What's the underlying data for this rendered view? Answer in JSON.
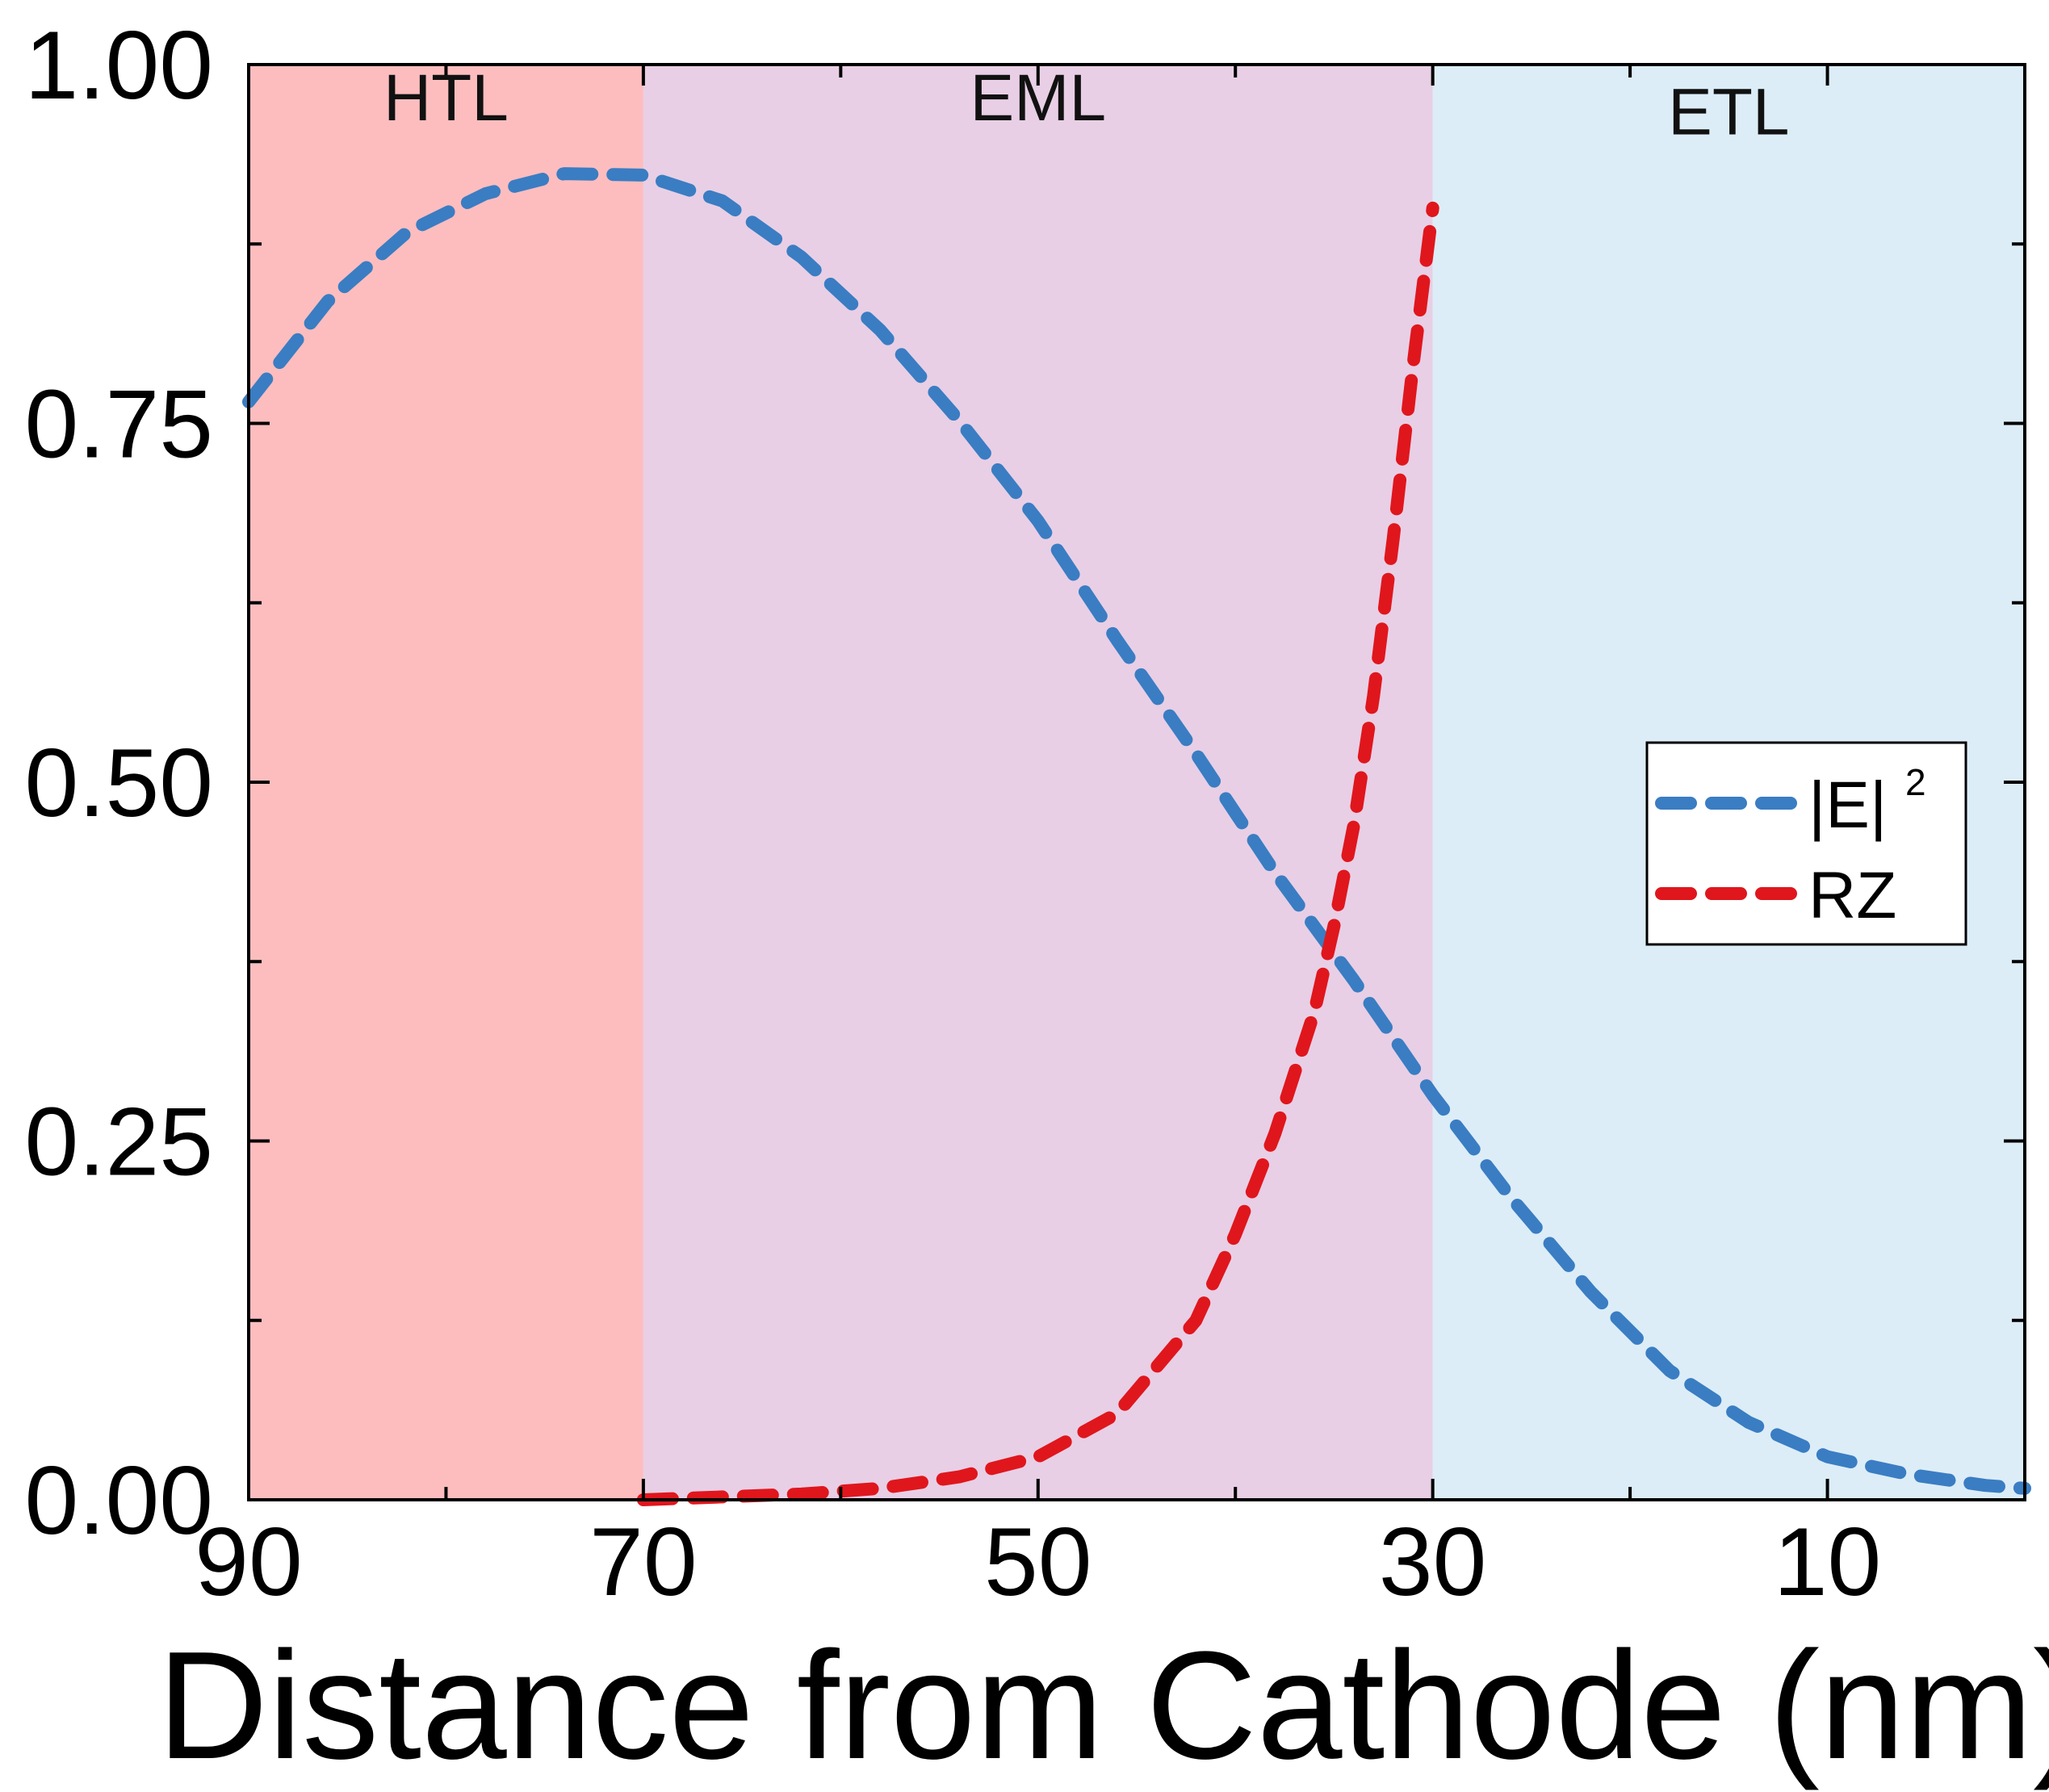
{
  "chart_data": {
    "type": "line",
    "xlabel": "Distance from Cathode (nm)",
    "ylabel": "",
    "xlim": [
      90,
      0
    ],
    "ylim": [
      0,
      1
    ],
    "x_reversed": true,
    "x_ticks": [
      90,
      70,
      50,
      30,
      10
    ],
    "x_tick_labels": [
      "90",
      "70",
      "50",
      "30",
      "10"
    ],
    "x_minor_ticks": [
      80,
      60,
      40,
      20
    ],
    "y_ticks": [
      0,
      0.25,
      0.5,
      0.75,
      1.0
    ],
    "y_tick_labels": [
      "0.00",
      "0.25",
      "0.50",
      "0.75",
      "1.00"
    ],
    "y_minor_ticks": [
      0.125,
      0.375,
      0.625,
      0.875
    ],
    "grid": false,
    "legend_position": "right",
    "regions": [
      {
        "label": "HTL",
        "x_start": 90,
        "x_end": 70,
        "color": "#fdbdbe"
      },
      {
        "label": "EML",
        "x_start": 70,
        "x_end": 30,
        "color": "#e8cfe5"
      },
      {
        "label": "ETL",
        "x_start": 30,
        "x_end": 0,
        "color": "#dcedf7"
      }
    ],
    "series": [
      {
        "name": "|E|",
        "name_superscript": "2",
        "color": "#3a7dc3",
        "style": "dashed",
        "x": [
          90,
          86,
          82,
          78,
          74,
          70,
          66,
          62,
          58,
          54,
          50,
          46,
          42,
          38,
          34,
          30,
          26,
          22,
          18,
          14,
          10,
          6,
          2,
          0
        ],
        "y": [
          0.765,
          0.835,
          0.883,
          0.91,
          0.924,
          0.923,
          0.905,
          0.866,
          0.815,
          0.752,
          0.682,
          0.599,
          0.52,
          0.437,
          0.362,
          0.282,
          0.21,
          0.145,
          0.09,
          0.054,
          0.03,
          0.018,
          0.01,
          0.008
        ]
      },
      {
        "name": "RZ",
        "color": "#e0161d",
        "style": "dashed",
        "x": [
          70,
          66,
          62,
          58,
          54,
          50,
          46,
          42,
          40,
          38,
          36,
          35,
          34,
          33,
          32,
          31,
          30
        ],
        "y": [
          0.0,
          0.002,
          0.004,
          0.008,
          0.016,
          0.03,
          0.06,
          0.125,
          0.185,
          0.255,
          0.34,
          0.4,
          0.47,
          0.56,
          0.67,
          0.79,
          0.9
        ]
      }
    ],
    "region_labels": [
      "HTL",
      "EML",
      "ETL"
    ]
  }
}
